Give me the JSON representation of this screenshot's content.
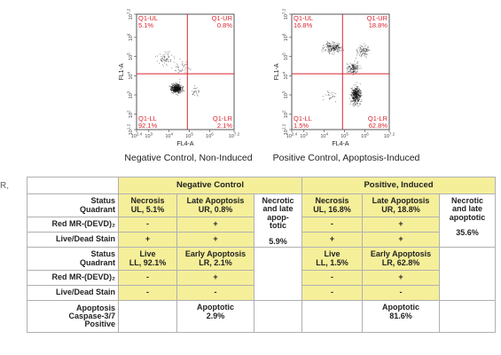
{
  "chart_data": [
    {
      "type": "scatter",
      "title": "Negative Control, Non-Induced",
      "xlabel": "FL4-A",
      "ylabel": "FL1-A",
      "x_ticks": [
        "10^2.4",
        "10^3",
        "10^4",
        "10^5",
        "10^6",
        "10^7.2"
      ],
      "y_ticks": [
        "10^1.2",
        "10^2",
        "10^3",
        "10^4",
        "10^5",
        "10^6",
        "10^7.2"
      ],
      "x_gate": 4.9,
      "y_gate": 4.1,
      "quadrants": [
        {
          "name": "Q1-UL",
          "value": "5.1%"
        },
        {
          "name": "Q1-UR",
          "value": "0.8%"
        },
        {
          "name": "Q1-LL",
          "value": "92.1%"
        },
        {
          "name": "Q1-LR",
          "value": "2.1%"
        }
      ]
    },
    {
      "type": "scatter",
      "title": "Positive Control, Apoptosis-Induced",
      "xlabel": "FL4-A",
      "ylabel": "FL1-A",
      "x_ticks": [
        "10^2.4",
        "10^3",
        "10^4",
        "10^5",
        "10^6",
        "10^7.2"
      ],
      "y_ticks": [
        "10^1.2",
        "10^2",
        "10^3",
        "10^4",
        "10^5",
        "10^6",
        "10^7.2"
      ],
      "x_gate": 4.9,
      "y_gate": 4.1,
      "quadrants": [
        {
          "name": "Q1-UL",
          "value": "16.8%"
        },
        {
          "name": "Q1-UR",
          "value": "18.8%"
        },
        {
          "name": "Q1-LL",
          "value": "1.5%"
        },
        {
          "name": "Q1-LR",
          "value": "62.8%"
        }
      ]
    }
  ],
  "edge_fragment": "R,",
  "table": {
    "neg_header": "Negative Control",
    "pos_header": "Positive, Induced",
    "status_quadrant": [
      "Status",
      "Quadrant"
    ],
    "red_mr": "Red MR-(DEVD)₂",
    "live_dead": "Live/Dead Stain",
    "apoptosis_row": [
      "Apoptosis",
      "Caspase-3/7",
      "Positive"
    ],
    "neg": {
      "necrosis": [
        "Necrosis",
        "UL, 5.1%"
      ],
      "late": [
        "Late Apoptosis",
        "UR, 0.8%"
      ],
      "necrotic": [
        "Necrotic",
        "and late",
        "apop-",
        "totic"
      ],
      "necrotic_value": "5.9%",
      "live": [
        "Live",
        "LL, 92.1%"
      ],
      "early": [
        "Early Apoptosis",
        "LR, 2.1%"
      ],
      "necrosis_red": "-",
      "necrosis_stain": "+",
      "late_red": "+",
      "late_stain": "+",
      "live_red": "-",
      "live_stain": "-",
      "early_red": "+",
      "early_stain": "-",
      "apoptotic": [
        "Apoptotic",
        "2.9%"
      ]
    },
    "pos": {
      "necrosis": [
        "Necrosis",
        "UL, 16.8%"
      ],
      "late": [
        "Late Apoptosis",
        "UR, 18.8%"
      ],
      "necrotic": [
        "Necrotic",
        "and late",
        "apoptotic"
      ],
      "necrotic_value": "35.6%",
      "live": [
        "Live",
        "LL, 1.5%"
      ],
      "early": [
        "Early Apoptosis",
        "LR, 62.8%"
      ],
      "necrosis_red": "-",
      "necrosis_stain": "+",
      "late_red": "+",
      "late_stain": "+",
      "live_red": "-",
      "live_stain": "-",
      "early_red": "+",
      "early_stain": "-",
      "apoptotic": [
        "Apoptotic",
        "81.6%"
      ]
    }
  }
}
